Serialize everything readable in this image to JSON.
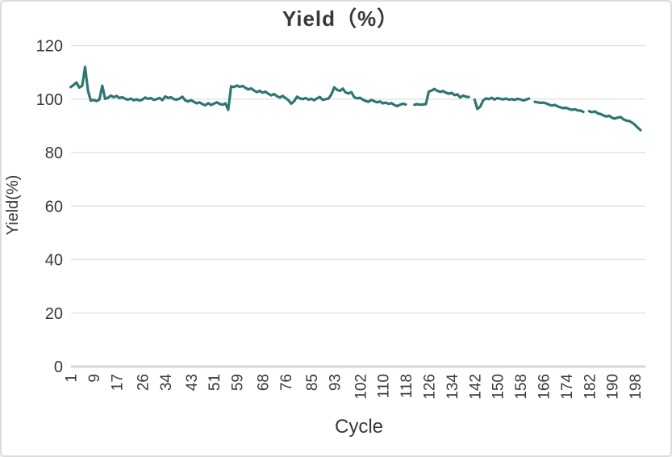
{
  "frame": {
    "background_color": "#ffffff",
    "border_color": "#dcdcdc"
  },
  "chart_data": {
    "type": "line",
    "title": "Yield（%）",
    "xlabel": "Cycle",
    "ylabel": "Yield(%)",
    "legend": "none",
    "grid": "horizontal",
    "line_color": "#2e7672",
    "grid_color": "#e4e4e4",
    "axis_line_color": "#d6d6d6",
    "text_color": "#383838",
    "ylim": [
      0,
      120
    ],
    "y_ticks": [
      0,
      20,
      40,
      60,
      80,
      100,
      120
    ],
    "x_tick_labels": [
      1,
      9,
      17,
      26,
      34,
      43,
      51,
      59,
      68,
      76,
      85,
      93,
      102,
      110,
      118,
      126,
      134,
      142,
      150,
      158,
      166,
      174,
      182,
      190,
      198
    ],
    "x_start": 1,
    "x_step": 1,
    "x_note": "cycle number = array index + 1; null = gap (missing data) in the trace",
    "values": [
      104.5,
      105.3,
      106.2,
      104.3,
      105.0,
      112.0,
      103.2,
      99.4,
      99.7,
      99.3,
      99.8,
      105.0,
      100.1,
      100.5,
      101.3,
      100.7,
      101.2,
      100.4,
      100.7,
      100.1,
      99.8,
      100.2,
      99.6,
      99.9,
      99.5,
      99.8,
      100.6,
      100.1,
      100.4,
      99.7,
      100.0,
      100.4,
      99.6,
      101.0,
      100.4,
      100.7,
      100.0,
      99.8,
      100.2,
      100.9,
      99.5,
      99.1,
      99.6,
      99.0,
      98.4,
      98.8,
      98.1,
      97.7,
      98.5,
      97.8,
      98.3,
      98.8,
      98.2,
      97.9,
      98.4,
      96.0,
      104.8,
      104.5,
      105.1,
      104.6,
      104.9,
      104.2,
      103.6,
      104.0,
      103.2,
      102.6,
      103.1,
      102.4,
      102.8,
      102.0,
      101.4,
      101.9,
      101.1,
      100.6,
      101.2,
      100.4,
      99.6,
      98.3,
      99.2,
      100.9,
      100.3,
      100.0,
      100.4,
      99.8,
      100.1,
      99.6,
      100.3,
      100.8,
      99.7,
      100.0,
      100.2,
      101.8,
      104.4,
      103.5,
      103.1,
      103.9,
      102.5,
      102.1,
      102.6,
      100.7,
      100.3,
      100.5,
      99.8,
      99.3,
      99.0,
      99.7,
      99.2,
      98.8,
      99.1,
      98.4,
      98.7,
      98.2,
      98.5,
      97.8,
      97.4,
      97.9,
      98.3,
      98.0,
      null,
      null,
      97.9,
      98.1,
      97.9,
      98.0,
      98.1,
      102.8,
      103.2,
      103.8,
      103.1,
      102.7,
      103.0,
      102.4,
      102.0,
      102.3,
      101.5,
      101.8,
      100.6,
      101.3,
      100.9,
      100.8,
      null,
      99.8,
      96.3,
      97.2,
      99.5,
      100.3,
      100.0,
      100.5,
      99.8,
      100.4,
      100.1,
      99.9,
      100.2,
      99.8,
      100.0,
      99.7,
      100.1,
      99.9,
      99.5,
      99.8,
      100.2,
      null,
      99.0,
      98.8,
      98.6,
      98.7,
      98.4,
      97.9,
      97.6,
      97.8,
      97.3,
      96.9,
      96.6,
      96.8,
      96.3,
      96.0,
      96.2,
      95.8,
      95.7,
      95.2,
      null,
      95.5,
      95.1,
      95.4,
      94.7,
      94.4,
      93.9,
      93.5,
      93.8,
      93.0,
      92.7,
      93.1,
      93.3,
      92.4,
      92.0,
      91.8,
      91.2,
      90.4,
      89.3,
      88.4
    ]
  }
}
